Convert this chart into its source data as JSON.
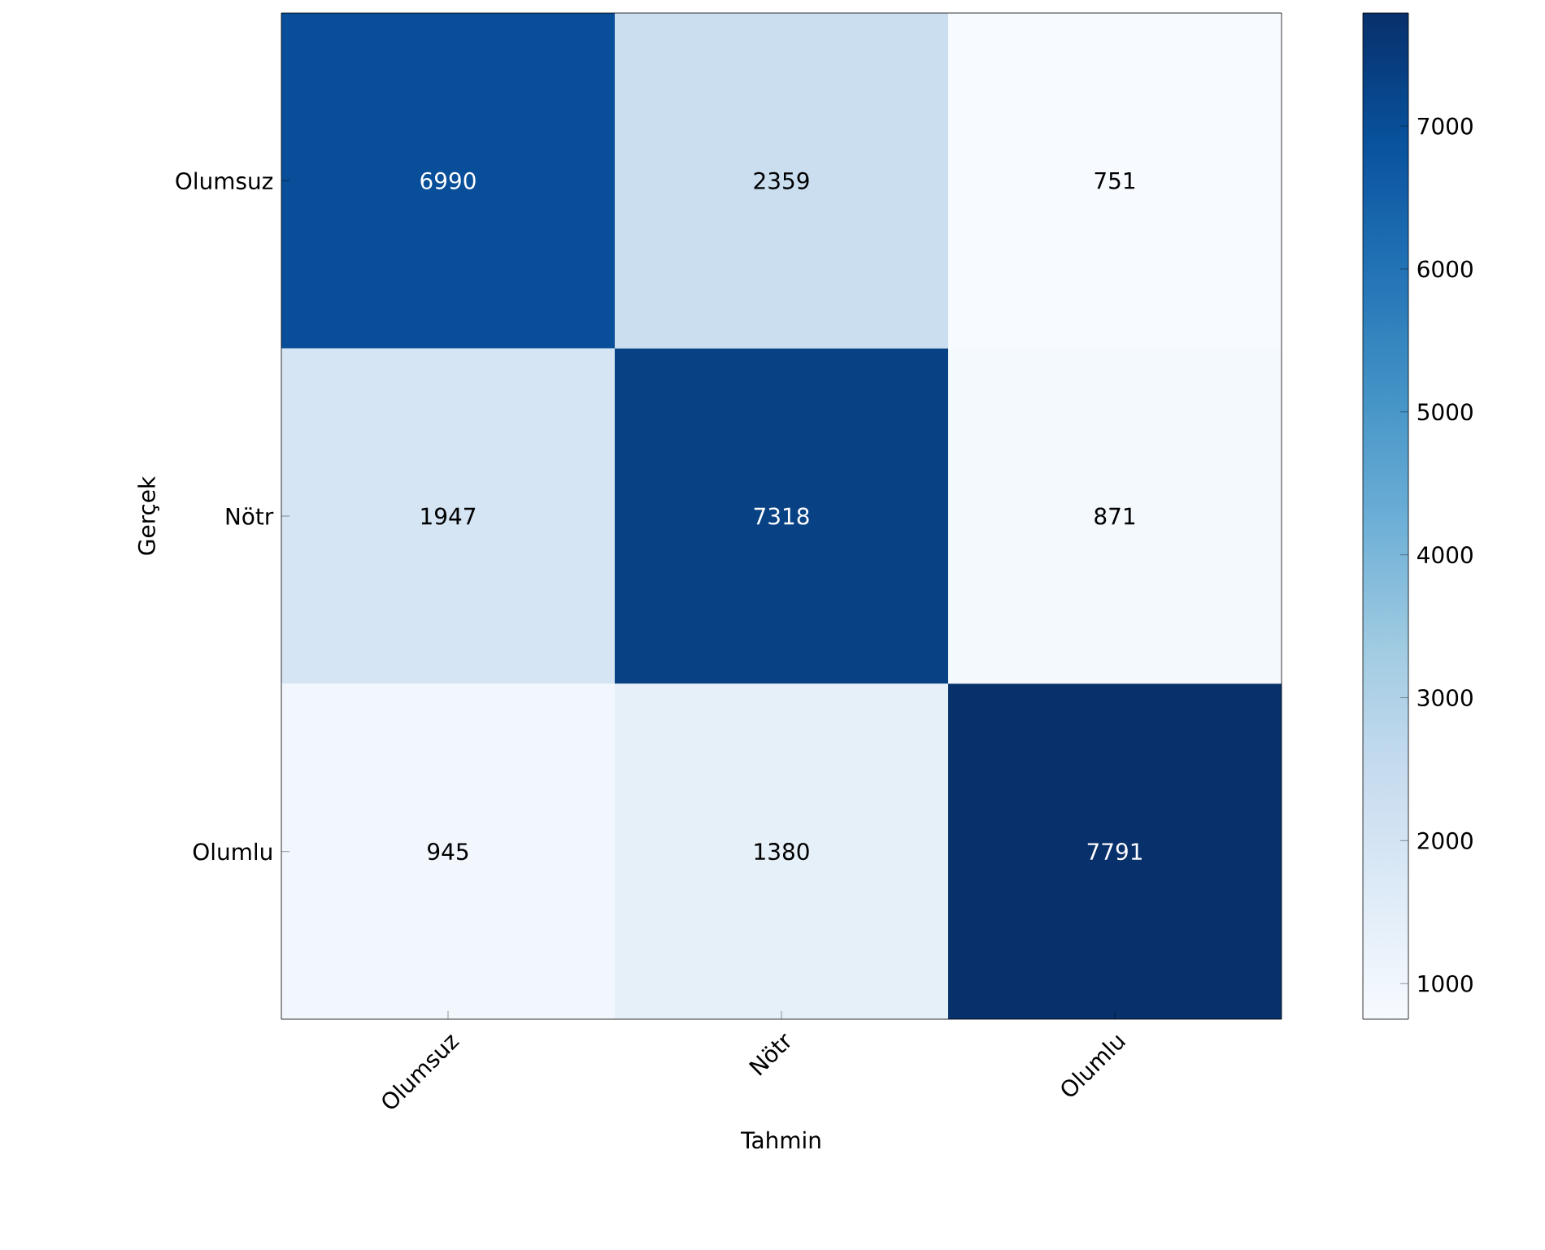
{
  "chart_data": {
    "type": "heatmap",
    "xlabel": "Tahmin",
    "ylabel": "Gerçek",
    "categories": [
      "Olumsuz",
      "Nötr",
      "Olumlu"
    ],
    "y_categories": [
      "Olumsuz",
      "Nötr",
      "Olumlu"
    ],
    "cells": [
      [
        6990,
        2359,
        751
      ],
      [
        1947,
        7318,
        871
      ],
      [
        945,
        1380,
        7791
      ]
    ],
    "data_labels": true,
    "clim": [
      751,
      7791
    ],
    "cticks": [
      1000,
      2000,
      3000,
      4000,
      5000,
      6000,
      7000
    ]
  }
}
